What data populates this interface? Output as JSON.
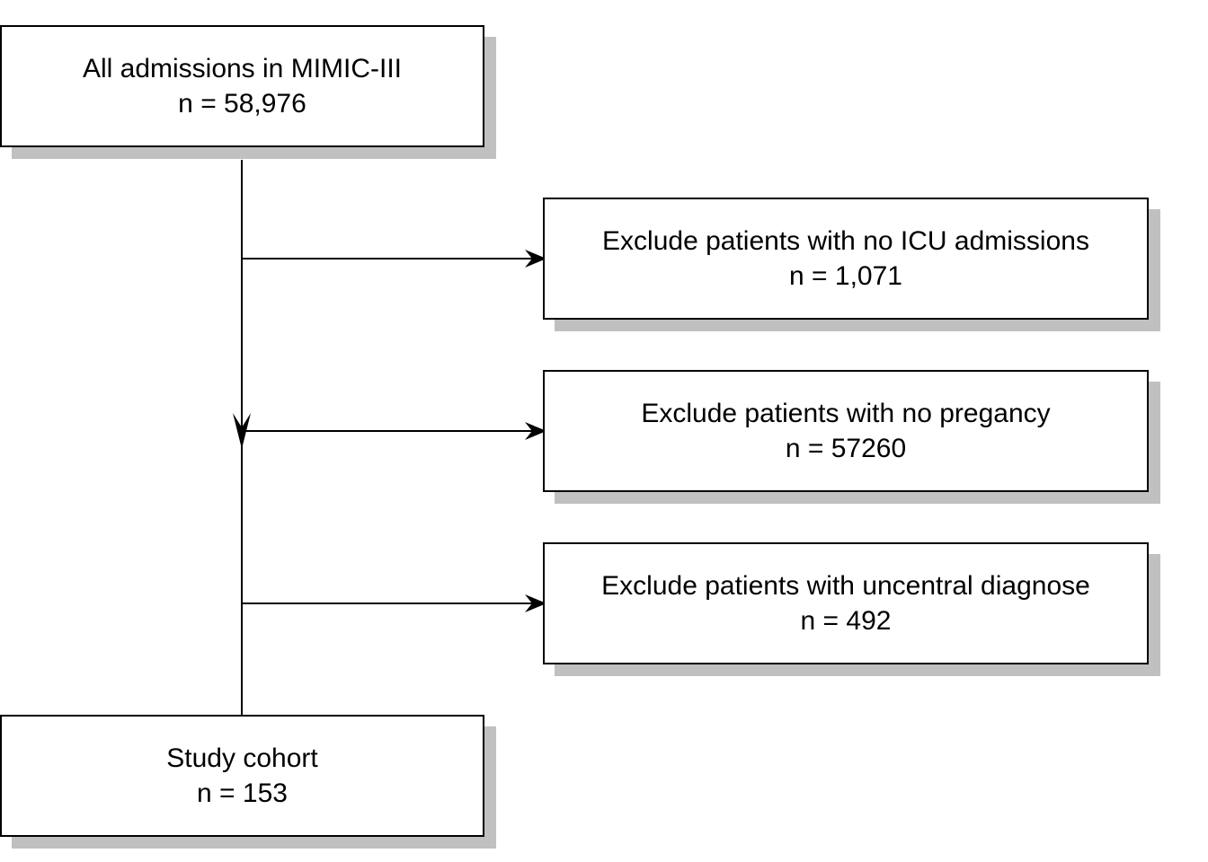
{
  "flowchart": {
    "start": {
      "title": "All admissions in MIMIC-III",
      "count": "n = 58,976"
    },
    "exclusions": [
      {
        "title": "Exclude patients with no ICU admissions",
        "count": "n = 1,071"
      },
      {
        "title": "Exclude patients with no pregancy",
        "count": "n = 57260"
      },
      {
        "title": "Exclude patients with uncentral diagnose",
        "count": "n = 492"
      }
    ],
    "end": {
      "title": "Study cohort",
      "count": "n = 153"
    }
  },
  "colors": {
    "stroke": "#000000",
    "box_fill": "#ffffff",
    "shadow": "#c0c0c0"
  }
}
